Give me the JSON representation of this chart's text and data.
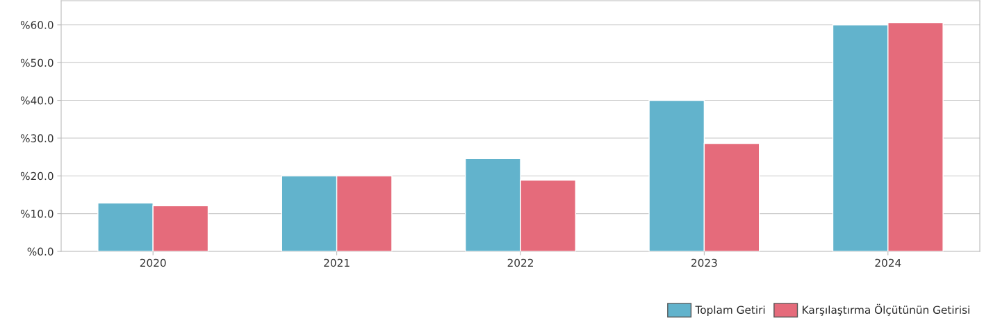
{
  "chart_data": {
    "type": "bar",
    "categories": [
      "2020",
      "2021",
      "2022",
      "2023",
      "2024"
    ],
    "series": [
      {
        "name": "Toplam Getiri",
        "color": "#62b3cc",
        "values": [
          12.8,
          20.0,
          24.6,
          40.0,
          60.0
        ]
      },
      {
        "name": "Karşılaştırma Ölçütünün Getirisi",
        "color": "#e56b7b",
        "values": [
          12.1,
          20.0,
          18.9,
          28.6,
          60.6
        ]
      }
    ],
    "ylim": [
      0,
      66.4
    ],
    "yticks": [
      {
        "value": 0,
        "label": "%0.0"
      },
      {
        "value": 10,
        "label": "%10.0"
      },
      {
        "value": 20,
        "label": "%20.0"
      },
      {
        "value": 30,
        "label": "%30.0"
      },
      {
        "value": 40,
        "label": "%40.0"
      },
      {
        "value": 50,
        "label": "%50.0"
      },
      {
        "value": 60,
        "label": "%60.0"
      }
    ],
    "grid": "y",
    "legend": "bottom right"
  }
}
